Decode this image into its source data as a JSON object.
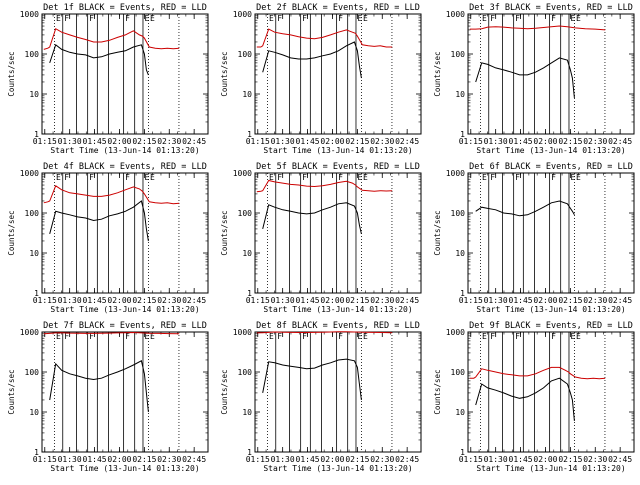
{
  "chart_data": {
    "type": "line",
    "ylabel": "Counts/sec",
    "xlabel": "Start Time (13-Jun-14 01:13:20)",
    "yscale": "log",
    "ylim": [
      1,
      1000
    ],
    "y_ticks": [
      "1",
      "10",
      "100",
      "1000"
    ],
    "x_ticks": [
      "01:15",
      "01:30",
      "01:45",
      "02:00",
      "02:15",
      "02:30",
      "02:45"
    ],
    "x_tick_hours": [
      1.25,
      1.5,
      1.75,
      2.0,
      2.25,
      2.5,
      2.75
    ],
    "xlim": [
      1.2222,
      2.8889
    ],
    "colors": {
      "events": "#000000",
      "lld": "#cc0000",
      "marker": "#000000"
    },
    "interval_markers": [
      {
        "hour": 1.3472,
        "label": "E",
        "style": "dotted"
      },
      {
        "hour": 1.4306,
        "label": "F",
        "style": "solid"
      },
      {
        "hour": 1.5694,
        "label": "",
        "style": "solid"
      },
      {
        "hour": 1.6806,
        "label": "F",
        "style": "solid"
      },
      {
        "hour": 1.7778,
        "label": "",
        "style": "solid"
      },
      {
        "hour": 1.8889,
        "label": "",
        "style": "solid"
      },
      {
        "hour": 2.0417,
        "label": "F",
        "style": "solid"
      },
      {
        "hour": 2.1528,
        "label": "",
        "style": "solid"
      },
      {
        "hour": 2.2361,
        "label": "E",
        "style": "solid"
      },
      {
        "hour": 2.2917,
        "label": "E",
        "style": "dotted"
      },
      {
        "hour": 2.5972,
        "label": "",
        "style": "dotted"
      }
    ],
    "panels": [
      {
        "title": "Det 1f BLACK = Events, RED = LLD",
        "events": {
          "hours": [
            1.3,
            1.36,
            1.42,
            1.5,
            1.58,
            1.66,
            1.74,
            1.82,
            1.9,
            1.98,
            2.06,
            2.14,
            2.22,
            2.25,
            2.27,
            2.29
          ],
          "values": [
            60,
            170,
            130,
            110,
            100,
            95,
            80,
            85,
            100,
            110,
            120,
            150,
            170,
            100,
            40,
            30
          ]
        },
        "lld": {
          "hours": [
            1.24,
            1.28,
            1.3,
            1.36,
            1.42,
            1.5,
            1.58,
            1.66,
            1.74,
            1.82,
            1.9,
            1.98,
            2.06,
            2.14,
            2.2,
            2.23,
            2.25,
            2.3,
            2.36,
            2.42,
            2.48,
            2.54,
            2.6
          ],
          "values": [
            130,
            140,
            150,
            430,
            350,
            300,
            260,
            230,
            200,
            200,
            220,
            260,
            300,
            380,
            300,
            280,
            250,
            150,
            140,
            135,
            140,
            135,
            140
          ]
        }
      },
      {
        "title": "Det 2f BLACK = Events, RED = LLD",
        "events": {
          "hours": [
            1.3,
            1.36,
            1.42,
            1.5,
            1.58,
            1.66,
            1.74,
            1.82,
            1.9,
            1.98,
            2.06,
            2.14,
            2.22,
            2.25,
            2.27,
            2.29
          ],
          "values": [
            35,
            120,
            110,
            95,
            80,
            75,
            75,
            80,
            90,
            100,
            120,
            160,
            200,
            120,
            50,
            25
          ]
        },
        "lld": {
          "hours": [
            1.24,
            1.28,
            1.3,
            1.36,
            1.42,
            1.5,
            1.58,
            1.66,
            1.74,
            1.82,
            1.9,
            1.98,
            2.06,
            2.14,
            2.2,
            2.23,
            2.25,
            2.3,
            2.36,
            2.42,
            2.48,
            2.54,
            2.6
          ],
          "values": [
            150,
            150,
            160,
            420,
            350,
            320,
            300,
            270,
            250,
            240,
            260,
            300,
            350,
            400,
            350,
            330,
            280,
            170,
            160,
            155,
            160,
            150,
            150
          ]
        }
      },
      {
        "title": "Det 3f BLACK = Events, RED = LLD",
        "events": {
          "hours": [
            1.3,
            1.36,
            1.42,
            1.5,
            1.58,
            1.66,
            1.74,
            1.82,
            1.9,
            1.98,
            2.06,
            2.14,
            2.22,
            2.25,
            2.27,
            2.29
          ],
          "values": [
            20,
            60,
            55,
            45,
            40,
            35,
            30,
            30,
            35,
            45,
            60,
            80,
            70,
            40,
            25,
            8
          ]
        },
        "lld": {
          "hours": [
            1.24,
            1.3,
            1.36,
            1.42,
            1.5,
            1.58,
            1.66,
            1.74,
            1.82,
            1.9,
            1.98,
            2.06,
            2.14,
            2.22,
            2.3,
            2.4,
            2.5,
            2.6
          ],
          "values": [
            420,
            420,
            430,
            470,
            480,
            470,
            450,
            440,
            430,
            440,
            460,
            480,
            500,
            480,
            450,
            430,
            420,
            400
          ]
        }
      },
      {
        "title": "Det 4f BLACK = Events, RED = LLD",
        "events": {
          "hours": [
            1.3,
            1.36,
            1.42,
            1.5,
            1.58,
            1.66,
            1.74,
            1.82,
            1.9,
            1.98,
            2.06,
            2.14,
            2.22,
            2.25,
            2.27,
            2.29
          ],
          "values": [
            30,
            110,
            100,
            90,
            80,
            75,
            65,
            70,
            85,
            95,
            110,
            140,
            200,
            100,
            40,
            20
          ]
        },
        "lld": {
          "hours": [
            1.24,
            1.28,
            1.3,
            1.36,
            1.42,
            1.5,
            1.58,
            1.66,
            1.74,
            1.82,
            1.9,
            1.98,
            2.06,
            2.14,
            2.2,
            2.23,
            2.25,
            2.3,
            2.36,
            2.42,
            2.48,
            2.54,
            2.6
          ],
          "values": [
            180,
            190,
            200,
            480,
            380,
            320,
            300,
            280,
            260,
            260,
            280,
            320,
            380,
            450,
            400,
            350,
            300,
            190,
            180,
            175,
            180,
            170,
            175
          ]
        }
      },
      {
        "title": "Det 5f BLACK = Events, RED = LLD",
        "events": {
          "hours": [
            1.3,
            1.36,
            1.42,
            1.5,
            1.58,
            1.66,
            1.74,
            1.82,
            1.9,
            1.98,
            2.06,
            2.14,
            2.22,
            2.25,
            2.27,
            2.29
          ],
          "values": [
            40,
            160,
            140,
            120,
            110,
            100,
            95,
            100,
            120,
            140,
            170,
            180,
            150,
            100,
            50,
            30
          ]
        },
        "lld": {
          "hours": [
            1.24,
            1.28,
            1.3,
            1.36,
            1.42,
            1.5,
            1.58,
            1.66,
            1.74,
            1.82,
            1.9,
            1.98,
            2.06,
            2.14,
            2.2,
            2.23,
            2.25,
            2.3,
            2.36,
            2.42,
            2.48,
            2.54,
            2.6
          ],
          "values": [
            340,
            350,
            360,
            650,
            600,
            560,
            520,
            500,
            470,
            460,
            480,
            520,
            580,
            620,
            560,
            500,
            450,
            370,
            360,
            350,
            360,
            355,
            360
          ]
        }
      },
      {
        "title": "Det 6f BLACK = Events, RED = LLD",
        "events": {
          "hours": [
            1.3,
            1.36,
            1.42,
            1.5,
            1.58,
            1.66,
            1.74,
            1.82,
            1.9,
            1.98,
            2.06,
            2.14,
            2.22,
            2.25,
            2.27,
            2.29
          ],
          "values": [
            110,
            140,
            130,
            120,
            100,
            95,
            85,
            90,
            110,
            140,
            180,
            200,
            170,
            130,
            110,
            90
          ]
        },
        "lld": {
          "hours": [],
          "values": []
        }
      },
      {
        "title": "Det 7f BLACK = Events, RED = LLD",
        "events": {
          "hours": [
            1.3,
            1.36,
            1.42,
            1.5,
            1.58,
            1.66,
            1.74,
            1.82,
            1.9,
            1.98,
            2.06,
            2.14,
            2.22,
            2.25,
            2.27,
            2.29
          ],
          "values": [
            20,
            160,
            110,
            90,
            80,
            70,
            65,
            70,
            85,
            100,
            120,
            150,
            190,
            90,
            30,
            10
          ]
        },
        "lld": {
          "hours": [
            1.24,
            1.3,
            1.36,
            1.42,
            1.5,
            1.58,
            1.66,
            1.74,
            1.82,
            1.9,
            1.98,
            2.06,
            2.14,
            2.22,
            2.3,
            2.4,
            2.5,
            2.6
          ],
          "values": [
            900,
            920,
            950,
            960,
            940,
            930,
            920,
            920,
            930,
            940,
            950,
            960,
            970,
            950,
            930,
            920,
            910,
            900
          ]
        }
      },
      {
        "title": "Det 8f BLACK = Events, RED = LLD",
        "events": {
          "hours": [
            1.3,
            1.36,
            1.42,
            1.5,
            1.58,
            1.66,
            1.74,
            1.82,
            1.9,
            1.98,
            2.06,
            2.14,
            2.22,
            2.25,
            2.27,
            2.29
          ],
          "values": [
            30,
            180,
            170,
            150,
            140,
            130,
            120,
            125,
            150,
            170,
            200,
            210,
            190,
            130,
            50,
            20
          ]
        },
        "lld": {
          "hours": [
            1.24,
            1.3,
            1.36,
            1.42,
            1.5,
            1.58,
            1.66,
            1.74,
            1.82,
            1.9,
            1.98,
            2.06,
            2.14,
            2.22,
            2.3,
            2.4,
            2.5,
            2.6
          ],
          "values": [
            950,
            960,
            980,
            1000,
            990,
            980,
            970,
            970,
            980,
            990,
            1000,
            1010,
            1020,
            1000,
            990,
            980,
            970,
            960
          ]
        }
      },
      {
        "title": "Det 9f BLACK = Events, RED = LLD",
        "events": {
          "hours": [
            1.3,
            1.36,
            1.42,
            1.5,
            1.58,
            1.66,
            1.74,
            1.82,
            1.9,
            1.98,
            2.06,
            2.14,
            2.22,
            2.25,
            2.27,
            2.29
          ],
          "values": [
            15,
            50,
            40,
            35,
            30,
            25,
            22,
            24,
            30,
            40,
            60,
            70,
            50,
            30,
            20,
            6
          ]
        },
        "lld": {
          "hours": [
            1.24,
            1.28,
            1.3,
            1.36,
            1.42,
            1.5,
            1.58,
            1.66,
            1.74,
            1.82,
            1.9,
            1.98,
            2.06,
            2.14,
            2.2,
            2.23,
            2.25,
            2.3,
            2.36,
            2.42,
            2.48,
            2.54,
            2.6
          ],
          "values": [
            70,
            70,
            75,
            120,
            110,
            100,
            90,
            85,
            80,
            80,
            90,
            110,
            130,
            130,
            110,
            100,
            90,
            75,
            70,
            68,
            70,
            68,
            70
          ]
        }
      }
    ]
  }
}
